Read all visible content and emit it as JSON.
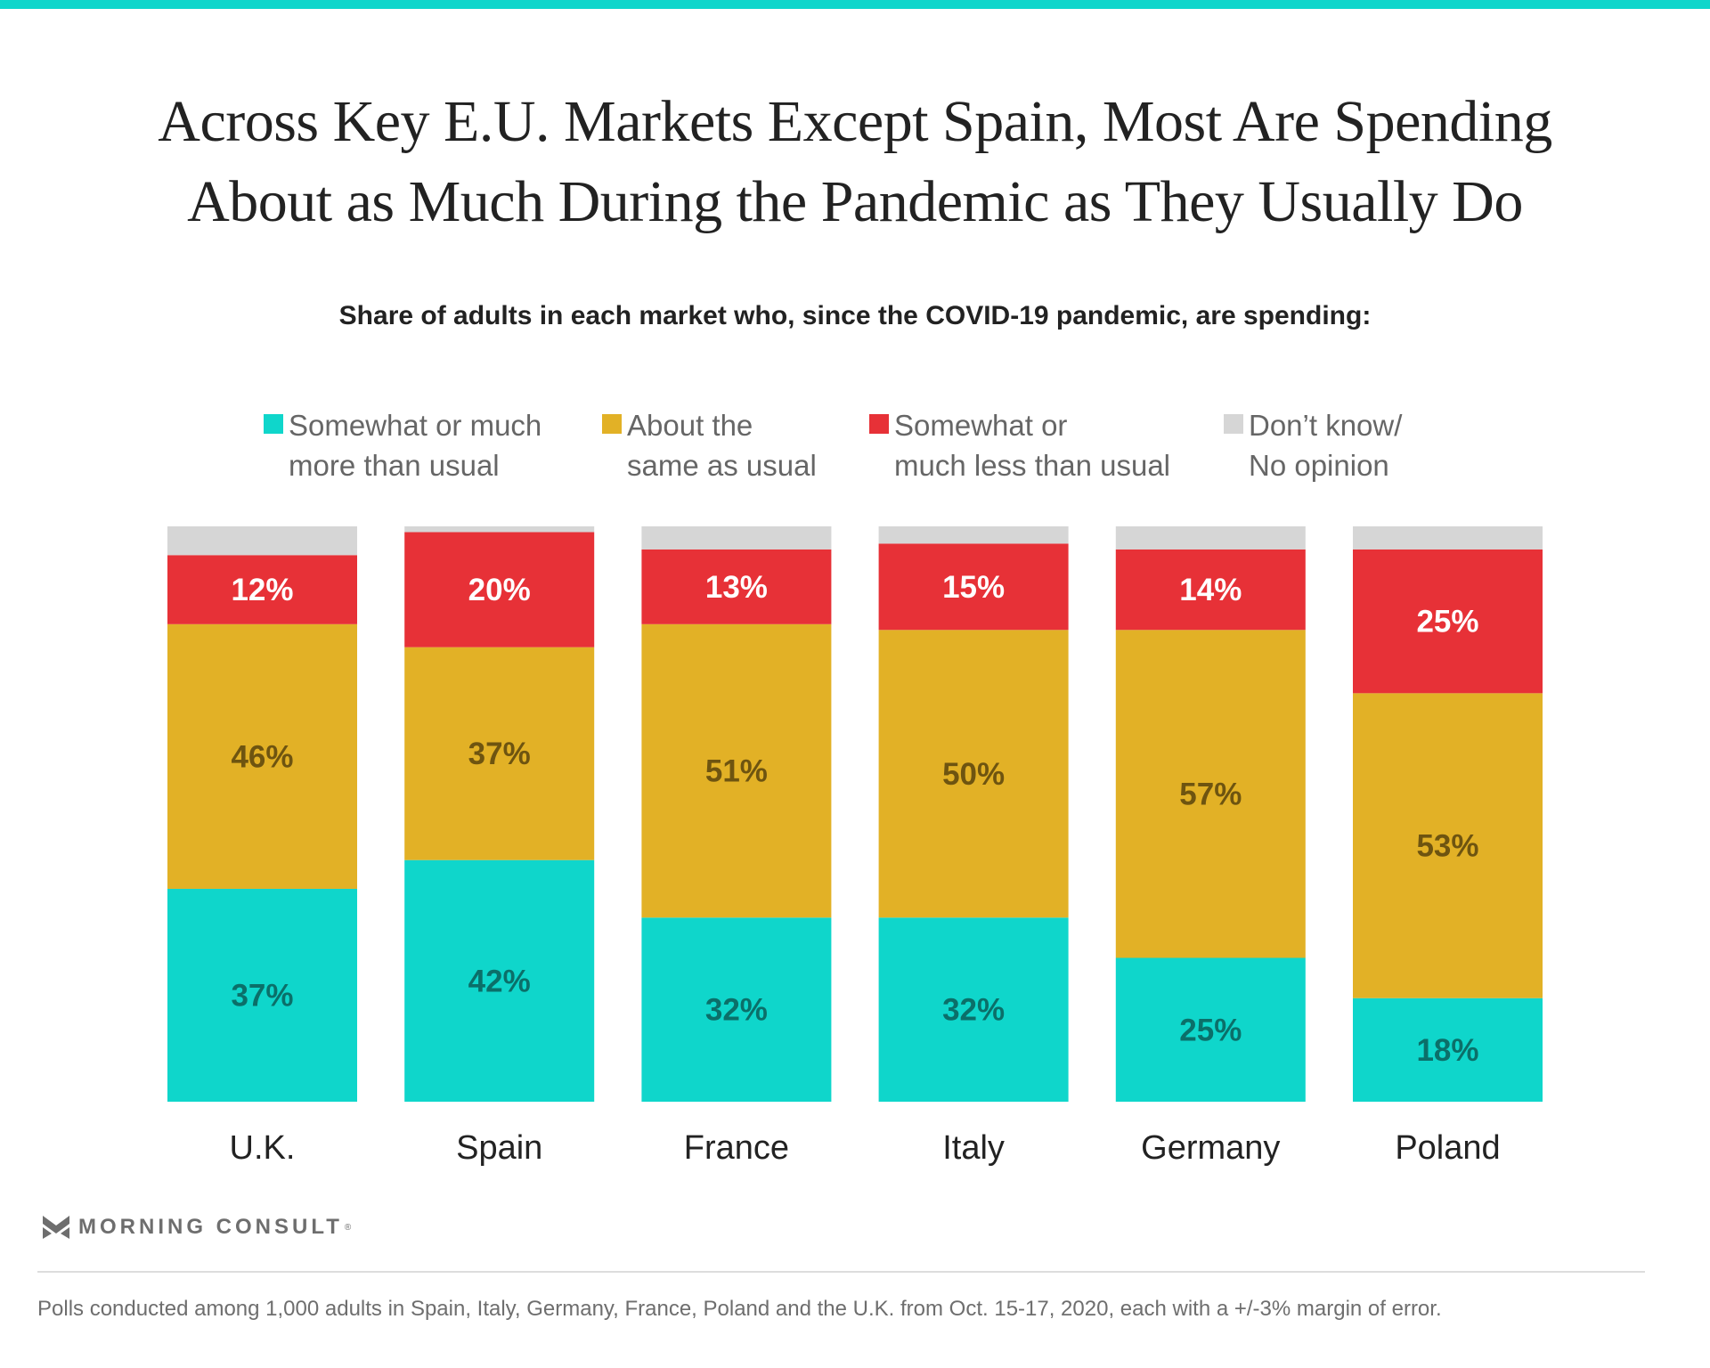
{
  "header": {
    "title_line1": "Across Key E.U. Markets Except Spain, Most Are Spending",
    "title_line2": "About as Much During the Pandemic as They Usually Do",
    "subtitle": "Share of adults in each market who, since the COVID-19 pandemic, are spending:"
  },
  "colors": {
    "accent_bar": "#0fd6cb",
    "more": "#0fd6cb",
    "same": "#e2b126",
    "less": "#e73137",
    "dk": "#d6d6d6",
    "more_label": "#0b6f69",
    "same_label": "#6e5410",
    "less_label": "#ffffff"
  },
  "legend": [
    {
      "key": "more",
      "label": "Somewhat or much\nmore than usual",
      "color": "#0fd6cb"
    },
    {
      "key": "same",
      "label": "About the\nsame as usual",
      "color": "#e2b126"
    },
    {
      "key": "less",
      "label": "Somewhat or\nmuch less than usual",
      "color": "#e73137"
    },
    {
      "key": "dk",
      "label": "Don’t know/\nNo opinion",
      "color": "#d6d6d6"
    }
  ],
  "chart_data": {
    "type": "bar",
    "stacked": true,
    "title": "Across Key E.U. Markets Except Spain, Most Are Spending About as Much During the Pandemic as They Usually Do",
    "subtitle": "Share of adults in each market who, since the COVID-19 pandemic, are spending:",
    "xlabel": "",
    "ylabel": "",
    "ylim": [
      0,
      100
    ],
    "grid": false,
    "legend_position": "top",
    "categories": [
      "U.K.",
      "Spain",
      "France",
      "Italy",
      "Germany",
      "Poland"
    ],
    "series": [
      {
        "name": "Somewhat or much more than usual",
        "key": "more",
        "values": [
          37,
          42,
          32,
          32,
          25,
          18
        ],
        "labels": [
          "37%",
          "42%",
          "32%",
          "32%",
          "25%",
          "18%"
        ]
      },
      {
        "name": "About the same as usual",
        "key": "same",
        "values": [
          46,
          37,
          51,
          50,
          57,
          53
        ],
        "labels": [
          "46%",
          "37%",
          "51%",
          "50%",
          "57%",
          "53%"
        ]
      },
      {
        "name": "Somewhat or much less than usual",
        "key": "less",
        "values": [
          12,
          20,
          13,
          15,
          14,
          25
        ],
        "labels": [
          "12%",
          "20%",
          "13%",
          "15%",
          "14%",
          "25%"
        ]
      },
      {
        "name": "Don't know/No opinion",
        "key": "dk",
        "values": [
          5,
          1,
          4,
          3,
          4,
          4
        ],
        "labels": null
      }
    ]
  },
  "branding": {
    "logo_text": "MORNING CONSULT",
    "logo_mark": "®"
  },
  "footer": {
    "note": "Polls conducted among 1,000 adults in Spain, Italy, Germany, France, Poland and the U.K. from Oct. 15-17, 2020, each with a +/-3% margin of error."
  }
}
